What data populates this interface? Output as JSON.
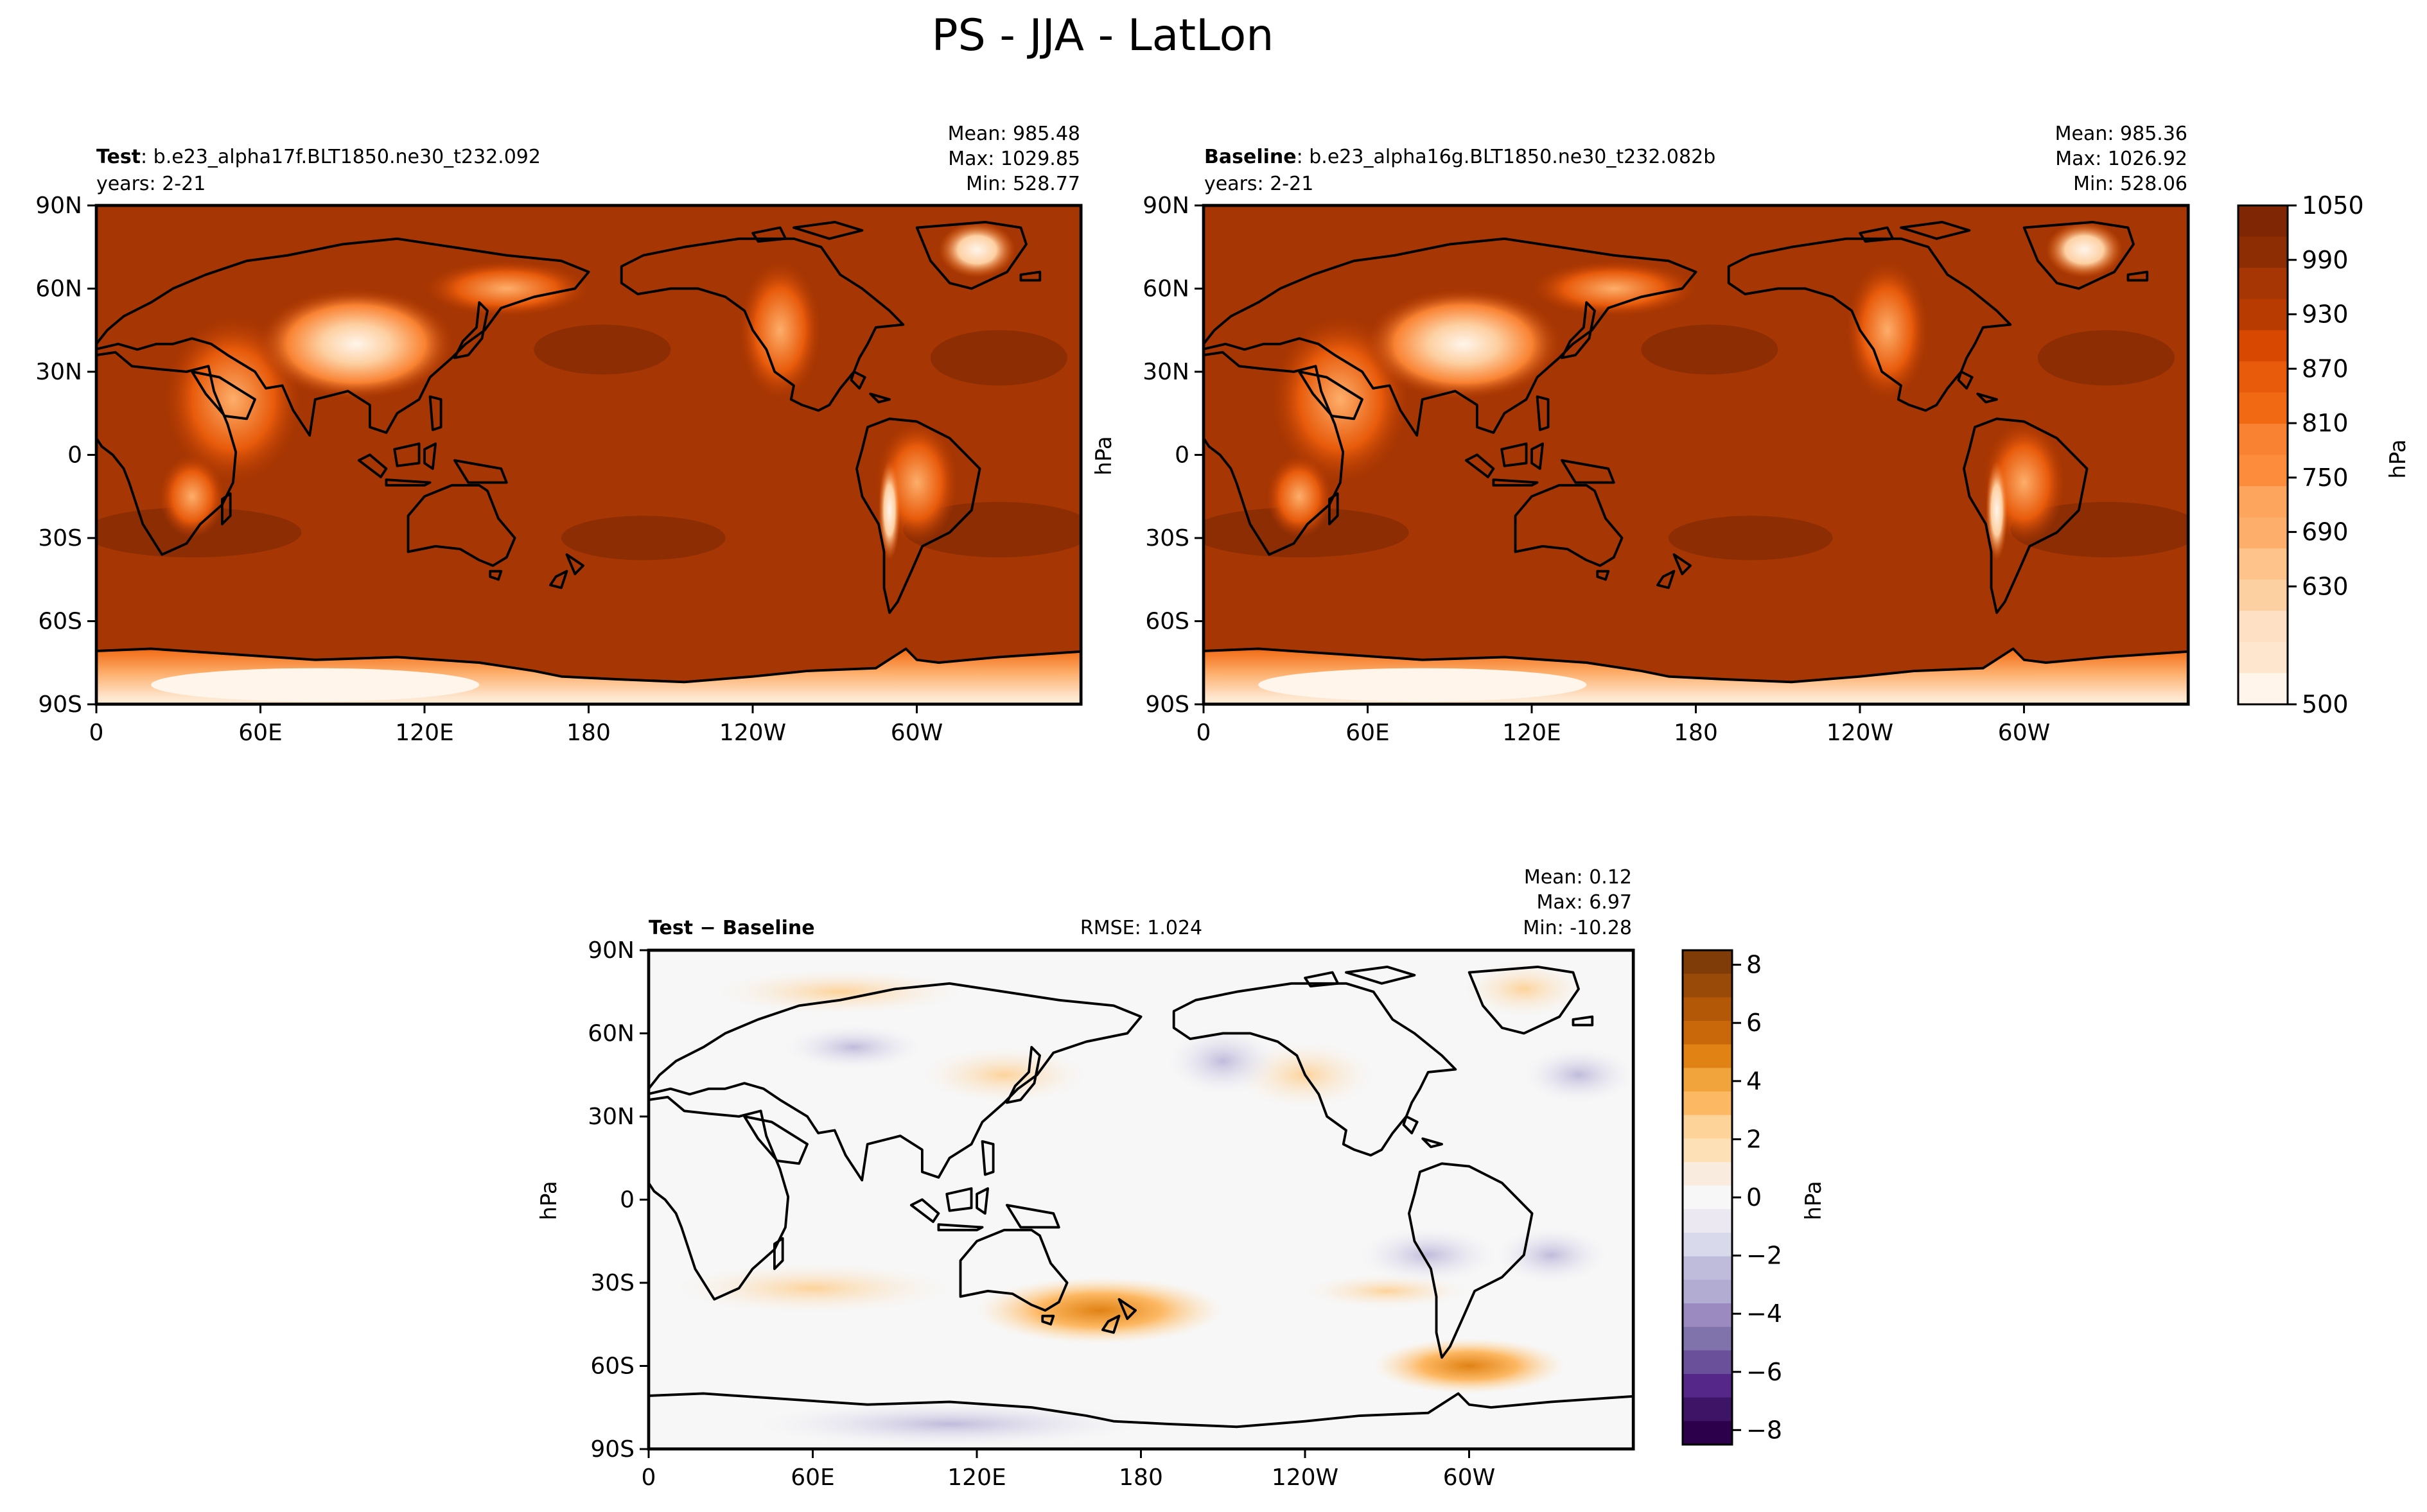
{
  "figure": {
    "title": "PS - JJA - LatLon"
  },
  "panels": [
    {
      "id": "test",
      "label_bold": "Test",
      "label_rest": ": b.e23_alpha17f.BLT1850.ne30_t232.092",
      "years": "years: 2-21",
      "stats": [
        "Mean: 985.48",
        "Max: 1029.85",
        "Min: 528.77"
      ],
      "ylabel": ""
    },
    {
      "id": "baseline",
      "label_bold": "Baseline",
      "label_rest": ": b.e23_alpha16g.BLT1850.ne30_t232.082b",
      "years": "years: 2-21",
      "stats": [
        "Mean: 985.36",
        "Max: 1026.92",
        "Min: 528.06"
      ],
      "ylabel": "hPa"
    },
    {
      "id": "diff",
      "label_bold": "Test − Baseline",
      "label_rest": "",
      "rmse": "RMSE: 1.024",
      "stats": [
        "Mean:  0.12",
        "Max:  6.97",
        "Min: -10.28"
      ],
      "ylabel": "hPa"
    }
  ],
  "axes": {
    "lat_ticks": [
      "90N",
      "60N",
      "30N",
      "0",
      "30S",
      "60S",
      "90S"
    ],
    "lon_ticks": [
      "0",
      "60E",
      "120E",
      "180",
      "120W",
      "60W"
    ]
  },
  "colorbars": {
    "main": {
      "ticks": [
        "1050",
        "990",
        "930",
        "870",
        "810",
        "750",
        "690",
        "630",
        "500"
      ],
      "label": "hPa",
      "colors": [
        "#7f2704",
        "#8c2d04",
        "#a63603",
        "#b83c02",
        "#d94801",
        "#e85b0b",
        "#f16913",
        "#f98232",
        "#fd8d3c",
        "#fda45d",
        "#fdae6b",
        "#fdc38b",
        "#fdd0a2",
        "#fee1c5",
        "#fee6ce",
        "#fff5eb"
      ]
    },
    "diff": {
      "ticks": [
        "8",
        "6",
        "4",
        "2",
        "0",
        "−2",
        "−4",
        "−6",
        "−8"
      ],
      "label": "hPa",
      "colors": [
        "#7f3b08",
        "#9a4a08",
        "#b35806",
        "#c8680b",
        "#e08214",
        "#f1a33c",
        "#fdb863",
        "#fdd39a",
        "#fee0b6",
        "#f9ecdf",
        "#f7f7f7",
        "#ebe8f2",
        "#d8daeb",
        "#bfbbdb",
        "#b2abd2",
        "#9a8ac0",
        "#8073ac",
        "#6a4f9b",
        "#542788",
        "#3d1466",
        "#2d004b"
      ]
    }
  },
  "chart_data": [
    {
      "type": "heatmap",
      "title": "Test: b.e23_alpha17f.BLT1850.ne30_t232.092",
      "variable": "PS",
      "units": "hPa",
      "season": "JJA",
      "years": "2-21",
      "stats": {
        "mean": 985.48,
        "max": 1029.85,
        "min": 528.77
      },
      "xlim": [
        0,
        360
      ],
      "ylim": [
        -90,
        90
      ],
      "color_range": [
        500,
        1050
      ]
    },
    {
      "type": "heatmap",
      "title": "Baseline: b.e23_alpha16g.BLT1850.ne30_t232.082b",
      "variable": "PS",
      "units": "hPa",
      "season": "JJA",
      "years": "2-21",
      "stats": {
        "mean": 985.36,
        "max": 1026.92,
        "min": 528.06
      },
      "xlim": [
        0,
        360
      ],
      "ylim": [
        -90,
        90
      ],
      "color_range": [
        500,
        1050
      ]
    },
    {
      "type": "heatmap",
      "title": "Test − Baseline",
      "variable": "PS",
      "units": "hPa",
      "stats": {
        "mean": 0.12,
        "max": 6.97,
        "min": -10.28,
        "rmse": 1.024
      },
      "xlim": [
        0,
        360
      ],
      "ylim": [
        -90,
        90
      ],
      "color_range": [
        -8.5,
        8.5
      ]
    }
  ]
}
